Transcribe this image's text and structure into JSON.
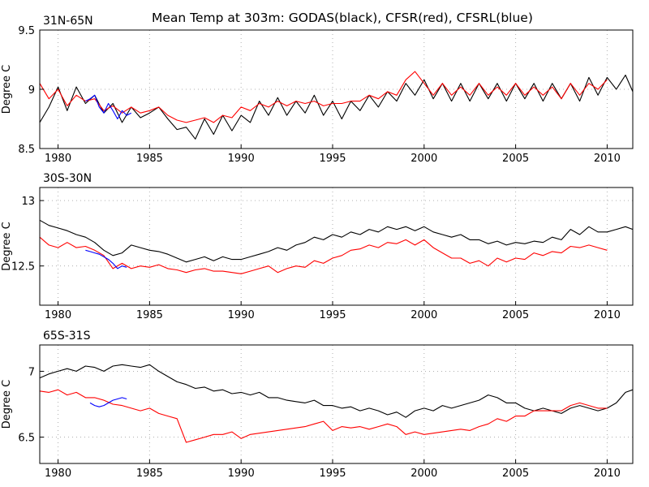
{
  "title": "Mean Temp at 303m: GODAS(black), CFSR(red), CFSRL(blue)",
  "colors": {
    "GODAS": "#000000",
    "CFSR": "#ff0000",
    "CFSRL": "#0000ff"
  },
  "chart_data": [
    {
      "type": "line",
      "panel_label": "31N-65N",
      "ylabel": "Degree C",
      "xlim": [
        1979,
        2011.4
      ],
      "ylim": [
        8.5,
        9.5
      ],
      "xticks": [
        1980,
        1985,
        1990,
        1995,
        2000,
        2005,
        2010
      ],
      "yticks": [
        8.5,
        9,
        9.5
      ],
      "ytick_labels": [
        "8.5",
        "9",
        "9.5"
      ],
      "grid": true,
      "series": [
        {
          "name": "GODAS",
          "color": "#000000",
          "x": [
            1979.0,
            1979.5,
            1980.0,
            1980.5,
            1981.0,
            1981.5,
            1982.0,
            1982.5,
            1983.0,
            1983.5,
            1984.0,
            1984.5,
            1985.0,
            1985.5,
            1986.0,
            1986.5,
            1987.0,
            1987.5,
            1988.0,
            1988.5,
            1989.0,
            1989.5,
            1990.0,
            1990.5,
            1991.0,
            1991.5,
            1992.0,
            1992.5,
            1993.0,
            1993.5,
            1994.0,
            1994.5,
            1995.0,
            1995.5,
            1996.0,
            1996.5,
            1997.0,
            1997.5,
            1998.0,
            1998.5,
            1999.0,
            1999.5,
            2000.0,
            2000.5,
            2001.0,
            2001.5,
            2002.0,
            2002.5,
            2003.0,
            2003.5,
            2004.0,
            2004.5,
            2005.0,
            2005.5,
            2006.0,
            2006.5,
            2007.0,
            2007.5,
            2008.0,
            2008.5,
            2009.0,
            2009.5,
            2010.0,
            2010.5,
            2011.0,
            2011.4
          ],
          "y": [
            8.72,
            8.85,
            9.02,
            8.82,
            9.02,
            8.88,
            8.95,
            8.8,
            8.88,
            8.72,
            8.85,
            8.76,
            8.8,
            8.85,
            8.75,
            8.66,
            8.68,
            8.58,
            8.75,
            8.62,
            8.78,
            8.65,
            8.78,
            8.72,
            8.9,
            8.78,
            8.93,
            8.78,
            8.9,
            8.8,
            8.95,
            8.78,
            8.9,
            8.75,
            8.9,
            8.82,
            8.95,
            8.85,
            8.98,
            8.9,
            9.05,
            8.95,
            9.08,
            8.92,
            9.05,
            8.9,
            9.05,
            8.9,
            9.05,
            8.92,
            9.05,
            8.9,
            9.05,
            8.92,
            9.05,
            8.9,
            9.05,
            8.92,
            9.05,
            8.9,
            9.1,
            8.95,
            9.1,
            9.0,
            9.12,
            8.98
          ]
        },
        {
          "name": "CFSR",
          "color": "#ff0000",
          "x": [
            1979.0,
            1979.5,
            1980.0,
            1980.5,
            1981.0,
            1981.5,
            1982.0,
            1982.5,
            1983.0,
            1983.5,
            1984.0,
            1984.5,
            1985.0,
            1985.5,
            1986.0,
            1986.5,
            1987.0,
            1987.5,
            1988.0,
            1988.5,
            1989.0,
            1989.5,
            1990.0,
            1990.5,
            1991.0,
            1991.5,
            1992.0,
            1992.5,
            1993.0,
            1993.5,
            1994.0,
            1994.5,
            1995.0,
            1995.5,
            1996.0,
            1996.5,
            1997.0,
            1997.5,
            1998.0,
            1998.5,
            1999.0,
            1999.5,
            2000.0,
            2000.5,
            2001.0,
            2001.5,
            2002.0,
            2002.5,
            2003.0,
            2003.5,
            2004.0,
            2004.5,
            2005.0,
            2005.5,
            2006.0,
            2006.5,
            2007.0,
            2007.5,
            2008.0,
            2008.5,
            2009.0,
            2009.5,
            2010.0
          ],
          "y": [
            9.05,
            8.92,
            9.0,
            8.86,
            8.95,
            8.9,
            8.92,
            8.82,
            8.86,
            8.8,
            8.85,
            8.8,
            8.82,
            8.85,
            8.78,
            8.74,
            8.72,
            8.74,
            8.76,
            8.72,
            8.78,
            8.76,
            8.85,
            8.82,
            8.88,
            8.85,
            8.9,
            8.86,
            8.9,
            8.88,
            8.9,
            8.86,
            8.88,
            8.88,
            8.9,
            8.9,
            8.95,
            8.92,
            8.98,
            8.95,
            9.08,
            9.15,
            9.05,
            8.95,
            9.05,
            8.95,
            9.02,
            8.95,
            9.05,
            8.95,
            9.02,
            8.95,
            9.05,
            8.95,
            9.02,
            8.95,
            9.02,
            8.92,
            9.05,
            8.95,
            9.05,
            9.0,
            9.08
          ]
        },
        {
          "name": "CFSRL",
          "color": "#0000ff",
          "x": [
            1981.5,
            1981.75,
            1982.0,
            1982.25,
            1982.5,
            1982.75,
            1983.0,
            1983.25,
            1983.5,
            1983.75,
            1984.0
          ],
          "y": [
            8.9,
            8.92,
            8.95,
            8.85,
            8.8,
            8.88,
            8.82,
            8.75,
            8.82,
            8.78,
            8.8
          ]
        }
      ]
    },
    {
      "type": "line",
      "panel_label": "30S-30N",
      "ylabel": "Degree C",
      "xlim": [
        1979,
        2011.4
      ],
      "ylim": [
        12.2,
        13.1
      ],
      "xticks": [
        1980,
        1985,
        1990,
        1995,
        2000,
        2005,
        2010
      ],
      "yticks": [
        12.5,
        13
      ],
      "ytick_labels": [
        "12.5",
        "13"
      ],
      "grid": true,
      "series": [
        {
          "name": "GODAS",
          "color": "#000000",
          "x": [
            1979.0,
            1979.5,
            1980.0,
            1980.5,
            1981.0,
            1981.5,
            1982.0,
            1982.5,
            1983.0,
            1983.5,
            1984.0,
            1984.5,
            1985.0,
            1985.5,
            1986.0,
            1986.5,
            1987.0,
            1987.5,
            1988.0,
            1988.5,
            1989.0,
            1989.5,
            1990.0,
            1990.5,
            1991.0,
            1991.5,
            1992.0,
            1992.5,
            1993.0,
            1993.5,
            1994.0,
            1994.5,
            1995.0,
            1995.5,
            1996.0,
            1996.5,
            1997.0,
            1997.5,
            1998.0,
            1998.5,
            1999.0,
            1999.5,
            2000.0,
            2000.5,
            2001.0,
            2001.5,
            2002.0,
            2002.5,
            2003.0,
            2003.5,
            2004.0,
            2004.5,
            2005.0,
            2005.5,
            2006.0,
            2006.5,
            2007.0,
            2007.5,
            2008.0,
            2008.5,
            2009.0,
            2009.5,
            2010.0,
            2010.5,
            2011.0,
            2011.4
          ],
          "y": [
            12.85,
            12.81,
            12.79,
            12.77,
            12.74,
            12.72,
            12.68,
            12.62,
            12.58,
            12.6,
            12.66,
            12.64,
            12.62,
            12.61,
            12.59,
            12.56,
            12.53,
            12.55,
            12.57,
            12.54,
            12.57,
            12.55,
            12.55,
            12.57,
            12.59,
            12.61,
            12.64,
            12.62,
            12.66,
            12.68,
            12.72,
            12.7,
            12.74,
            12.72,
            12.76,
            12.74,
            12.78,
            12.76,
            12.8,
            12.78,
            12.8,
            12.77,
            12.8,
            12.76,
            12.74,
            12.72,
            12.74,
            12.7,
            12.7,
            12.67,
            12.69,
            12.66,
            12.68,
            12.67,
            12.69,
            12.68,
            12.72,
            12.7,
            12.78,
            12.74,
            12.8,
            12.76,
            12.76,
            12.78,
            12.8,
            12.78
          ]
        },
        {
          "name": "CFSR",
          "color": "#ff0000",
          "x": [
            1979.0,
            1979.5,
            1980.0,
            1980.5,
            1981.0,
            1981.5,
            1982.0,
            1982.5,
            1983.0,
            1983.5,
            1984.0,
            1984.5,
            1985.0,
            1985.5,
            1986.0,
            1986.5,
            1987.0,
            1987.5,
            1988.0,
            1988.5,
            1989.0,
            1989.5,
            1990.0,
            1990.5,
            1991.0,
            1991.5,
            1992.0,
            1992.5,
            1993.0,
            1993.5,
            1994.0,
            1994.5,
            1995.0,
            1995.5,
            1996.0,
            1996.5,
            1997.0,
            1997.5,
            1998.0,
            1998.5,
            1999.0,
            1999.5,
            2000.0,
            2000.5,
            2001.0,
            2001.5,
            2002.0,
            2002.5,
            2003.0,
            2003.5,
            2004.0,
            2004.5,
            2005.0,
            2005.5,
            2006.0,
            2006.5,
            2007.0,
            2007.5,
            2008.0,
            2008.5,
            2009.0,
            2009.5,
            2010.0
          ],
          "y": [
            12.72,
            12.66,
            12.64,
            12.68,
            12.64,
            12.65,
            12.62,
            12.58,
            12.48,
            12.52,
            12.48,
            12.5,
            12.49,
            12.51,
            12.48,
            12.47,
            12.45,
            12.47,
            12.48,
            12.46,
            12.46,
            12.45,
            12.44,
            12.46,
            12.48,
            12.5,
            12.45,
            12.48,
            12.5,
            12.49,
            12.54,
            12.52,
            12.56,
            12.58,
            12.62,
            12.63,
            12.66,
            12.64,
            12.68,
            12.67,
            12.7,
            12.66,
            12.7,
            12.64,
            12.6,
            12.56,
            12.56,
            12.52,
            12.54,
            12.5,
            12.56,
            12.53,
            12.56,
            12.55,
            12.6,
            12.58,
            12.61,
            12.6,
            12.65,
            12.64,
            12.66,
            12.64,
            12.62
          ]
        },
        {
          "name": "CFSRL",
          "color": "#0000ff",
          "x": [
            1981.5,
            1981.75,
            1982.0,
            1982.25,
            1982.5,
            1982.75,
            1983.0,
            1983.25,
            1983.5,
            1983.75
          ],
          "y": [
            12.62,
            12.61,
            12.6,
            12.59,
            12.57,
            12.55,
            12.52,
            12.48,
            12.5,
            12.49
          ]
        }
      ]
    },
    {
      "type": "line",
      "panel_label": "65S-31S",
      "ylabel": "Degree C",
      "xlim": [
        1979,
        2011.4
      ],
      "ylim": [
        6.3,
        7.2
      ],
      "xticks": [
        1980,
        1985,
        1990,
        1995,
        2000,
        2005,
        2010
      ],
      "yticks": [
        6.5,
        7
      ],
      "ytick_labels": [
        "6.5",
        "7"
      ],
      "grid": true,
      "series": [
        {
          "name": "GODAS",
          "color": "#000000",
          "x": [
            1979.0,
            1979.5,
            1980.0,
            1980.5,
            1981.0,
            1981.5,
            1982.0,
            1982.5,
            1983.0,
            1983.5,
            1984.0,
            1984.5,
            1985.0,
            1985.5,
            1986.0,
            1986.5,
            1987.0,
            1987.5,
            1988.0,
            1988.5,
            1989.0,
            1989.5,
            1990.0,
            1990.5,
            1991.0,
            1991.5,
            1992.0,
            1992.5,
            1993.0,
            1993.5,
            1994.0,
            1994.5,
            1995.0,
            1995.5,
            1996.0,
            1996.5,
            1997.0,
            1997.5,
            1998.0,
            1998.5,
            1999.0,
            1999.5,
            2000.0,
            2000.5,
            2001.0,
            2001.5,
            2002.0,
            2002.5,
            2003.0,
            2003.5,
            2004.0,
            2004.5,
            2005.0,
            2005.5,
            2006.0,
            2006.5,
            2007.0,
            2007.5,
            2008.0,
            2008.5,
            2009.0,
            2009.5,
            2010.0,
            2010.5,
            2011.0,
            2011.4
          ],
          "y": [
            6.95,
            6.98,
            7.0,
            7.02,
            7.0,
            7.04,
            7.03,
            7.0,
            7.04,
            7.05,
            7.04,
            7.03,
            7.05,
            7.0,
            6.96,
            6.92,
            6.9,
            6.87,
            6.88,
            6.85,
            6.86,
            6.83,
            6.84,
            6.82,
            6.84,
            6.8,
            6.8,
            6.78,
            6.77,
            6.76,
            6.78,
            6.74,
            6.74,
            6.72,
            6.73,
            6.7,
            6.72,
            6.7,
            6.67,
            6.69,
            6.65,
            6.7,
            6.72,
            6.7,
            6.74,
            6.72,
            6.74,
            6.76,
            6.78,
            6.82,
            6.8,
            6.76,
            6.76,
            6.72,
            6.7,
            6.72,
            6.7,
            6.68,
            6.72,
            6.74,
            6.72,
            6.7,
            6.72,
            6.76,
            6.84,
            6.86
          ]
        },
        {
          "name": "CFSR",
          "color": "#ff0000",
          "x": [
            1979.0,
            1979.5,
            1980.0,
            1980.5,
            1981.0,
            1981.5,
            1982.0,
            1982.5,
            1983.0,
            1983.5,
            1984.0,
            1984.5,
            1985.0,
            1985.5,
            1986.0,
            1986.5,
            1987.0,
            1987.5,
            1988.0,
            1988.5,
            1989.0,
            1989.5,
            1990.0,
            1990.5,
            1991.0,
            1991.5,
            1992.0,
            1992.5,
            1993.0,
            1993.5,
            1994.0,
            1994.5,
            1995.0,
            1995.5,
            1996.0,
            1996.5,
            1997.0,
            1997.5,
            1998.0,
            1998.5,
            1999.0,
            1999.5,
            2000.0,
            2000.5,
            2001.0,
            2001.5,
            2002.0,
            2002.5,
            2003.0,
            2003.5,
            2004.0,
            2004.5,
            2005.0,
            2005.5,
            2006.0,
            2006.5,
            2007.0,
            2007.5,
            2008.0,
            2008.5,
            2009.0,
            2009.5,
            2010.0
          ],
          "y": [
            6.85,
            6.84,
            6.86,
            6.82,
            6.84,
            6.8,
            6.8,
            6.78,
            6.75,
            6.74,
            6.72,
            6.7,
            6.72,
            6.68,
            6.66,
            6.64,
            6.46,
            6.48,
            6.5,
            6.52,
            6.52,
            6.54,
            6.49,
            6.52,
            6.53,
            6.54,
            6.55,
            6.56,
            6.57,
            6.58,
            6.6,
            6.62,
            6.55,
            6.58,
            6.57,
            6.58,
            6.56,
            6.58,
            6.6,
            6.58,
            6.52,
            6.54,
            6.52,
            6.53,
            6.54,
            6.55,
            6.56,
            6.55,
            6.58,
            6.6,
            6.64,
            6.62,
            6.66,
            6.66,
            6.7,
            6.7,
            6.7,
            6.7,
            6.74,
            6.76,
            6.74,
            6.72,
            6.72
          ]
        },
        {
          "name": "CFSRL",
          "color": "#0000ff",
          "x": [
            1981.75,
            1982.0,
            1982.25,
            1982.5,
            1982.75,
            1983.0,
            1983.25,
            1983.5,
            1983.75
          ],
          "y": [
            6.76,
            6.74,
            6.73,
            6.74,
            6.76,
            6.78,
            6.79,
            6.8,
            6.79
          ]
        }
      ]
    }
  ]
}
